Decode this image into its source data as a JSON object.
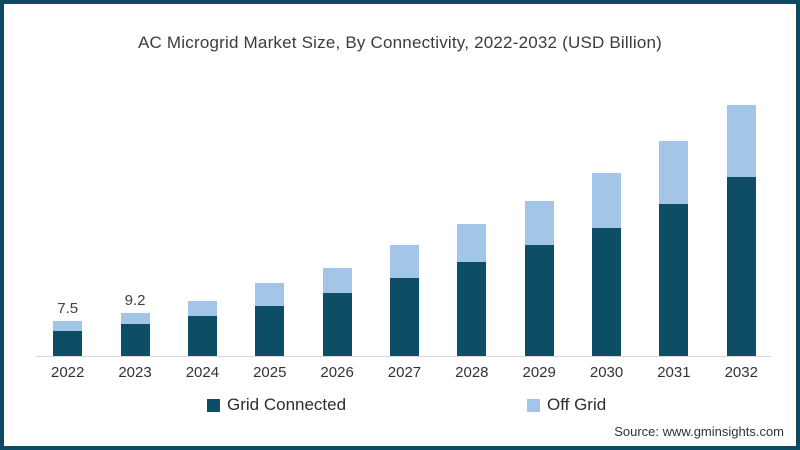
{
  "title": "AC Microgrid Market Size, By Connectivity, 2022-2032 (USD Billion)",
  "chart_data": {
    "type": "bar",
    "stacked": true,
    "title": "AC Microgrid Market Size, By Connectivity, 2022-2032 (USD Billion)",
    "categories": [
      "2022",
      "2023",
      "2024",
      "2025",
      "2026",
      "2027",
      "2028",
      "2029",
      "2030",
      "2031",
      "2032"
    ],
    "series": [
      {
        "name": "Grid Connected",
        "color": "#0e4d66",
        "values": [
          5.4,
          7.0,
          8.7,
          10.8,
          13.4,
          16.5,
          19.9,
          23.5,
          27.0,
          32.1,
          37.7
        ]
      },
      {
        "name": "Off Grid",
        "color": "#a3c6e8",
        "values": [
          2.1,
          2.2,
          3.1,
          4.7,
          5.3,
          6.9,
          8.0,
          9.2,
          11.5,
          13.1,
          15.2
        ]
      }
    ],
    "data_labels": [
      "7.5",
      "9.2",
      null,
      null,
      null,
      null,
      null,
      null,
      null,
      null,
      null
    ],
    "xlabel": "",
    "ylabel": "",
    "ylim": [
      0,
      55
    ],
    "grid": false,
    "legend_position": "bottom",
    "axis_line_color": "#d9d9d9"
  },
  "legend": {
    "items": [
      {
        "label": "Grid Connected",
        "color": "#0e4d66"
      },
      {
        "label": "Off Grid",
        "color": "#a3c6e8"
      }
    ]
  },
  "footer": {
    "source": "Source: www.gminsights.com"
  },
  "frame": {
    "border_color": "#0d4a63"
  }
}
